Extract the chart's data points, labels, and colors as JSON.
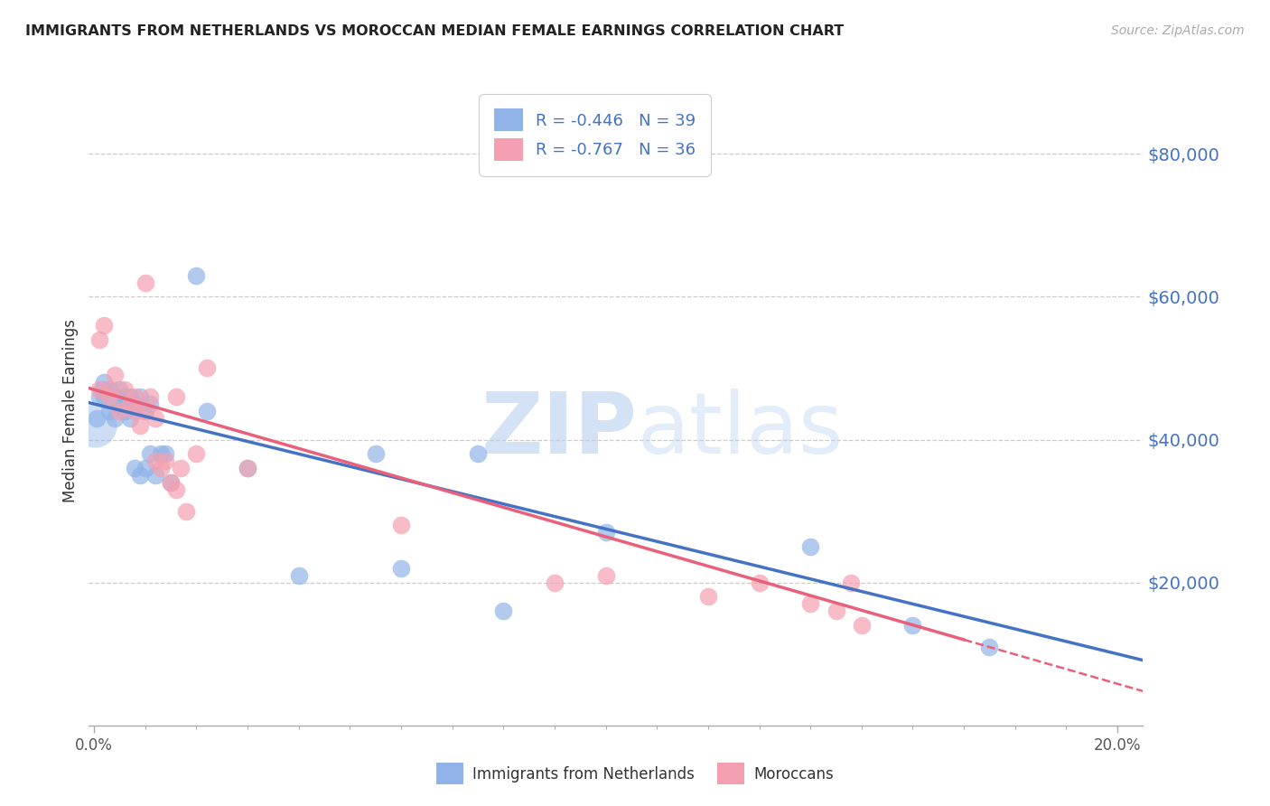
{
  "title": "IMMIGRANTS FROM NETHERLANDS VS MOROCCAN MEDIAN FEMALE EARNINGS CORRELATION CHART",
  "source": "Source: ZipAtlas.com",
  "ylabel": "Median Female Earnings",
  "ylabel_ticks": [
    "$20,000",
    "$40,000",
    "$60,000",
    "$80,000"
  ],
  "ylabel_vals": [
    20000,
    40000,
    60000,
    80000
  ],
  "ylim": [
    0,
    88000
  ],
  "xlim": [
    -0.001,
    0.205
  ],
  "R_netherlands": -0.446,
  "N_netherlands": 39,
  "R_moroccan": -0.767,
  "N_moroccan": 36,
  "color_netherlands": "#90b4e8",
  "color_moroccan": "#f4a0b0",
  "color_trendline_netherlands": "#4472c4",
  "color_trendline_moroccan": "#e8607a",
  "color_right_axis": "#4472c4",
  "netherlands_x": [
    0.0005,
    0.001,
    0.0015,
    0.002,
    0.002,
    0.003,
    0.003,
    0.004,
    0.004,
    0.005,
    0.005,
    0.006,
    0.006,
    0.007,
    0.007,
    0.008,
    0.008,
    0.009,
    0.009,
    0.01,
    0.01,
    0.011,
    0.011,
    0.012,
    0.013,
    0.014,
    0.015,
    0.02,
    0.022,
    0.03,
    0.04,
    0.055,
    0.06,
    0.075,
    0.08,
    0.1,
    0.14,
    0.16,
    0.175
  ],
  "netherlands_y": [
    43000,
    46000,
    47000,
    46000,
    48000,
    44000,
    47000,
    43000,
    46000,
    47000,
    45000,
    44000,
    46000,
    43000,
    46000,
    36000,
    45000,
    35000,
    46000,
    36000,
    44000,
    45000,
    38000,
    35000,
    38000,
    38000,
    34000,
    63000,
    44000,
    36000,
    21000,
    38000,
    22000,
    38000,
    16000,
    27000,
    25000,
    14000,
    11000
  ],
  "moroccan_x": [
    0.001,
    0.001,
    0.002,
    0.003,
    0.003,
    0.004,
    0.005,
    0.006,
    0.007,
    0.008,
    0.008,
    0.009,
    0.01,
    0.01,
    0.011,
    0.012,
    0.012,
    0.013,
    0.014,
    0.015,
    0.016,
    0.016,
    0.017,
    0.018,
    0.02,
    0.022,
    0.03,
    0.06,
    0.09,
    0.1,
    0.12,
    0.13,
    0.14,
    0.145,
    0.148,
    0.15
  ],
  "moroccan_y": [
    47000,
    54000,
    56000,
    47000,
    46000,
    49000,
    44000,
    47000,
    45000,
    46000,
    44000,
    42000,
    44000,
    62000,
    46000,
    37000,
    43000,
    36000,
    37000,
    34000,
    33000,
    46000,
    36000,
    30000,
    38000,
    50000,
    36000,
    28000,
    20000,
    21000,
    18000,
    20000,
    17000,
    16000,
    20000,
    14000
  ]
}
